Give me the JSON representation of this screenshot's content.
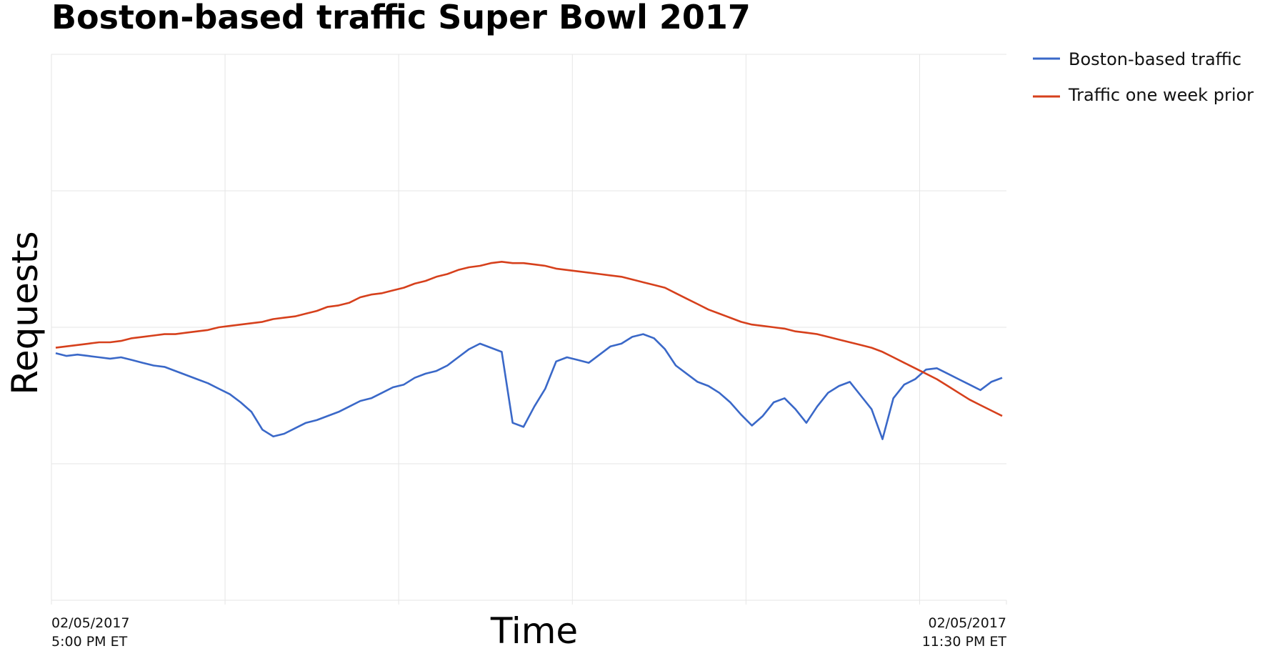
{
  "chart_data": {
    "type": "line",
    "title": "Boston-based traffic Super Bowl 2017",
    "xlabel": "Time",
    "ylabel": "Requests",
    "x_start_label": [
      "02/05/2017",
      "5:00 PM ET"
    ],
    "x_end_label": [
      "02/05/2017",
      "11:30 PM ET"
    ],
    "x_range": [
      "5:00 PM",
      "11:30 PM"
    ],
    "ylim": [
      0,
      4
    ],
    "grid": true,
    "y_tick_labels_shown": false,
    "legend_position": "top-right",
    "series": [
      {
        "name": "Boston-based traffic",
        "color": "#3a68c8",
        "values": [
          1.81,
          1.79,
          1.8,
          1.79,
          1.78,
          1.77,
          1.78,
          1.76,
          1.74,
          1.72,
          1.71,
          1.68,
          1.65,
          1.62,
          1.59,
          1.55,
          1.51,
          1.45,
          1.38,
          1.25,
          1.2,
          1.22,
          1.26,
          1.3,
          1.32,
          1.35,
          1.38,
          1.42,
          1.46,
          1.48,
          1.52,
          1.56,
          1.58,
          1.63,
          1.66,
          1.68,
          1.72,
          1.78,
          1.84,
          1.88,
          1.85,
          1.82,
          1.3,
          1.27,
          1.42,
          1.55,
          1.75,
          1.78,
          1.76,
          1.74,
          1.8,
          1.86,
          1.88,
          1.93,
          1.95,
          1.92,
          1.84,
          1.72,
          1.66,
          1.6,
          1.57,
          1.52,
          1.45,
          1.36,
          1.28,
          1.35,
          1.45,
          1.48,
          1.4,
          1.3,
          1.42,
          1.52,
          1.57,
          1.6,
          1.5,
          1.4,
          1.18,
          1.48,
          1.58,
          1.62,
          1.69,
          1.7,
          1.66,
          1.62,
          1.58,
          1.54,
          1.6,
          1.63
        ]
      },
      {
        "name": "Traffic one week prior",
        "color": "#d6401c",
        "values": [
          1.85,
          1.86,
          1.87,
          1.88,
          1.89,
          1.89,
          1.9,
          1.92,
          1.93,
          1.94,
          1.95,
          1.95,
          1.96,
          1.97,
          1.98,
          2.0,
          2.01,
          2.02,
          2.03,
          2.04,
          2.06,
          2.07,
          2.08,
          2.1,
          2.12,
          2.15,
          2.16,
          2.18,
          2.22,
          2.24,
          2.25,
          2.27,
          2.29,
          2.32,
          2.34,
          2.37,
          2.39,
          2.42,
          2.44,
          2.45,
          2.47,
          2.48,
          2.47,
          2.47,
          2.46,
          2.45,
          2.43,
          2.42,
          2.41,
          2.4,
          2.39,
          2.38,
          2.37,
          2.35,
          2.33,
          2.31,
          2.29,
          2.25,
          2.21,
          2.17,
          2.13,
          2.1,
          2.07,
          2.04,
          2.02,
          2.01,
          2.0,
          1.99,
          1.97,
          1.96,
          1.95,
          1.93,
          1.91,
          1.89,
          1.87,
          1.85,
          1.82,
          1.78,
          1.74,
          1.7,
          1.66,
          1.62,
          1.57,
          1.52,
          1.47,
          1.43,
          1.39,
          1.35
        ]
      }
    ]
  }
}
